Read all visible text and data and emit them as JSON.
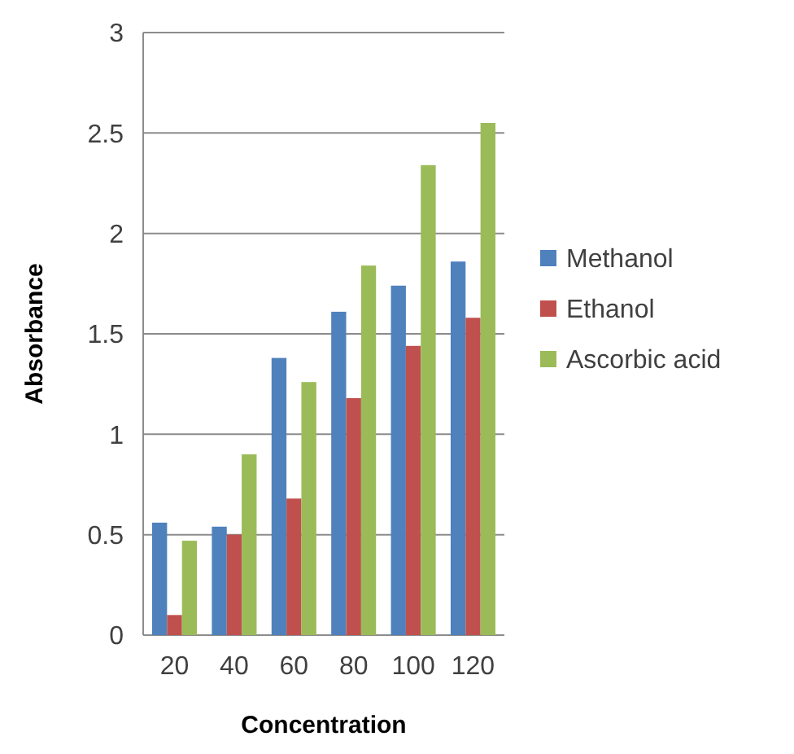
{
  "chart_data": {
    "type": "bar",
    "xlabel": "Concentration",
    "ylabel": "Absorbance",
    "categories": [
      "20",
      "40",
      "60",
      "80",
      "100",
      "120"
    ],
    "series": [
      {
        "name": "Methanol",
        "color": "#4f81bd",
        "values": [
          0.56,
          0.54,
          1.38,
          1.61,
          1.74,
          1.86
        ]
      },
      {
        "name": "Ethanol",
        "color": "#c0504d",
        "values": [
          0.1,
          0.5,
          0.68,
          1.18,
          1.44,
          1.58
        ]
      },
      {
        "name": "Ascorbic acid",
        "color": "#9bbb59",
        "values": [
          0.47,
          0.9,
          1.26,
          1.84,
          2.34,
          2.55
        ]
      }
    ],
    "ylim": [
      0,
      3
    ],
    "yticks": [
      0,
      0.5,
      1,
      1.5,
      2,
      2.5,
      3
    ],
    "grid": "y",
    "legend": "right"
  }
}
